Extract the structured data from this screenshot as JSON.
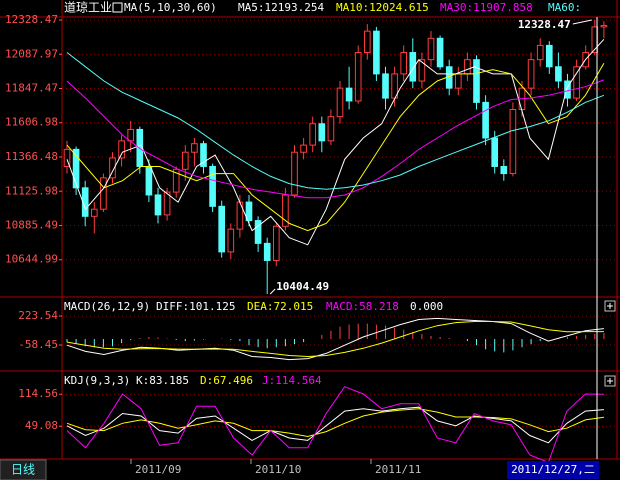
{
  "chart_data": [
    {
      "type": "candlestick",
      "title": "道琼工业",
      "legend": [
        "MA(5,10,30,60)",
        "MA5:12193.254",
        "MA10:12024.615",
        "MA30:11907.858",
        "MA60:"
      ],
      "ylim": [
        10404.49,
        12328.47
      ],
      "yticks": [
        12328.47,
        12087.97,
        11847.47,
        11606.98,
        11366.48,
        11125.98,
        10885.49,
        10644.99
      ],
      "grid": true,
      "up_color": "#ff3c3c",
      "down_color": "#54fcfc",
      "open": [
        11300,
        11420,
        11150,
        10950,
        11000,
        11220,
        11360,
        11480,
        11560,
        11300,
        11100,
        10960,
        11120,
        11280,
        11400,
        11460,
        11300,
        11020,
        10700,
        10860,
        11050,
        10920,
        10760,
        10640,
        10880,
        11100,
        11400,
        11450,
        11600,
        11480,
        11650,
        11850,
        11760,
        12100,
        12250,
        11950,
        11780,
        11950,
        12100,
        11900,
        12050,
        12200,
        12000,
        11850,
        11950,
        12050,
        11750,
        11500,
        11300,
        11250,
        11700,
        11850,
        12050,
        12150,
        12000,
        11900,
        11780,
        12000,
        12100,
        12280
      ],
      "high": [
        11480,
        11440,
        11200,
        11050,
        11250,
        11400,
        11520,
        11620,
        11580,
        11350,
        11150,
        11150,
        11300,
        11450,
        11500,
        11480,
        11320,
        11060,
        10900,
        11100,
        11100,
        10950,
        10800,
        10900,
        11150,
        11450,
        11500,
        11650,
        11650,
        11700,
        11900,
        12000,
        12150,
        12300,
        12280,
        12000,
        12000,
        12150,
        12200,
        12100,
        12250,
        12220,
        12050,
        12000,
        12100,
        12080,
        11800,
        11550,
        11350,
        11750,
        11900,
        12100,
        12200,
        12180,
        12100,
        11950,
        12050,
        12150,
        12328.47,
        12320
      ],
      "low": [
        11250,
        11100,
        10880,
        10830,
        10980,
        11180,
        11300,
        11400,
        11250,
        11050,
        10900,
        10920,
        11080,
        11200,
        11300,
        11250,
        10980,
        10660,
        10650,
        10800,
        10880,
        10700,
        10404.49,
        10600,
        10850,
        11080,
        11350,
        11400,
        11400,
        11450,
        11600,
        11700,
        11740,
        12050,
        11900,
        11700,
        11720,
        11900,
        11850,
        11850,
        12000,
        11980,
        11800,
        11800,
        11900,
        11700,
        11450,
        11250,
        11200,
        11230,
        11650,
        11800,
        12000,
        11950,
        11850,
        11720,
        11760,
        11980,
        12080,
        12200
      ],
      "close": [
        11420,
        11150,
        10950,
        11000,
        11220,
        11360,
        11480,
        11560,
        11300,
        11100,
        10960,
        11120,
        11280,
        11400,
        11460,
        11300,
        11020,
        10700,
        10860,
        11050,
        10920,
        10760,
        10640,
        10880,
        11100,
        11400,
        11450,
        11600,
        11480,
        11650,
        11850,
        11760,
        12100,
        12250,
        11950,
        11780,
        11950,
        12100,
        11900,
        12050,
        12200,
        12000,
        11850,
        11950,
        12050,
        11750,
        11500,
        11300,
        11250,
        11700,
        11850,
        12050,
        12150,
        12000,
        11900,
        11780,
        12000,
        12100,
        12280,
        12290
      ],
      "series": [
        {
          "name": "MA5",
          "color": "#ffffff",
          "values": [
            11350,
            11000,
            11150,
            11400,
            11450,
            11150,
            11050,
            11300,
            11380,
            11150,
            10850,
            10950,
            10800,
            10750,
            11000,
            11350,
            11500,
            11600,
            11850,
            12050,
            11950,
            11950,
            12000,
            11950,
            11950,
            11500,
            11350,
            11850,
            12050,
            12193.254
          ]
        },
        {
          "name": "MA10",
          "color": "#ffff00",
          "values": [
            11450,
            11300,
            11150,
            11200,
            11300,
            11300,
            11250,
            11200,
            11250,
            11250,
            11100,
            11000,
            10900,
            10850,
            10900,
            11050,
            11250,
            11450,
            11650,
            11800,
            11900,
            11950,
            11950,
            11980,
            11950,
            11800,
            11600,
            11650,
            11800,
            12024.615
          ]
        },
        {
          "name": "MA30",
          "color": "#ff00ff",
          "values": [
            11900,
            11780,
            11650,
            11520,
            11420,
            11350,
            11280,
            11230,
            11200,
            11170,
            11140,
            11120,
            11100,
            11080,
            11080,
            11100,
            11150,
            11230,
            11320,
            11420,
            11500,
            11580,
            11650,
            11720,
            11770,
            11780,
            11800,
            11830,
            11860,
            11907.858
          ]
        },
        {
          "name": "MA60",
          "color": "#54fcfc",
          "values": [
            12100,
            12000,
            11900,
            11820,
            11760,
            11700,
            11640,
            11560,
            11470,
            11380,
            11300,
            11230,
            11180,
            11150,
            11140,
            11150,
            11170,
            11200,
            11240,
            11300,
            11350,
            11400,
            11450,
            11500,
            11550,
            11580,
            11620,
            11680,
            11750,
            11800
          ]
        }
      ],
      "annotations": [
        "12328.47",
        "10404.49"
      ]
    },
    {
      "type": "macd",
      "legend": [
        "MACD(26,12,9)",
        "DIFF:101.125",
        "DEA:72.015",
        "MACD:58.218",
        "0.000"
      ],
      "ylim": [
        -301,
        389
      ],
      "yticks": [
        223.54,
        -58.45
      ],
      "grid": true,
      "series": [
        {
          "name": "DIFF",
          "color": "#ffffff",
          "values": [
            -60,
            -120,
            -150,
            -110,
            -80,
            -90,
            -110,
            -100,
            -90,
            -110,
            -170,
            -180,
            -200,
            -190,
            -140,
            -60,
            20,
            80,
            140,
            190,
            200,
            190,
            180,
            170,
            150,
            60,
            -20,
            30,
            80,
            101.125
          ]
        },
        {
          "name": "DEA",
          "color": "#ffff00",
          "values": [
            -30,
            -60,
            -90,
            -100,
            -95,
            -92,
            -98,
            -100,
            -97,
            -100,
            -120,
            -140,
            -160,
            -170,
            -160,
            -130,
            -90,
            -40,
            20,
            80,
            130,
            160,
            170,
            170,
            165,
            130,
            90,
            70,
            72,
            72.015
          ]
        }
      ],
      "bars": {
        "name": "MACD",
        "values": [
          -30,
          -50,
          -70,
          -80,
          -80,
          -70,
          -40,
          -10,
          10,
          20,
          15,
          5,
          -10,
          -20,
          -15,
          -5,
          0,
          5,
          -10,
          -20,
          -60,
          -80,
          -90,
          -80,
          -70,
          -50,
          -30,
          0,
          40,
          80,
          120,
          140,
          150,
          150,
          140,
          130,
          110,
          90,
          70,
          50,
          30,
          20,
          10,
          0,
          -20,
          -60,
          -100,
          -120,
          -130,
          -110,
          -80,
          -50,
          -20,
          0,
          10,
          20,
          30,
          40,
          50,
          58.218
        ]
      }
    },
    {
      "type": "kdj",
      "legend": [
        "KDJ(9,3,3)",
        "K:83.185",
        "D:67.496",
        "J:114.564"
      ],
      "ylim": [
        -14,
        156
      ],
      "yticks": [
        114.56,
        49.08
      ],
      "grid": true,
      "series": [
        {
          "name": "K",
          "color": "#ffffff",
          "values": [
            50,
            30,
            45,
            75,
            70,
            40,
            35,
            65,
            70,
            45,
            20,
            40,
            25,
            20,
            50,
            80,
            85,
            80,
            85,
            88,
            60,
            50,
            70,
            65,
            60,
            30,
            15,
            55,
            80,
            83.185
          ]
        },
        {
          "name": "D",
          "color": "#ffff00",
          "values": [
            55,
            42,
            40,
            55,
            62,
            55,
            45,
            52,
            60,
            55,
            40,
            40,
            35,
            28,
            38,
            55,
            70,
            78,
            82,
            85,
            78,
            68,
            68,
            67,
            64,
            52,
            38,
            45,
            62,
            67.496
          ]
        },
        {
          "name": "J",
          "color": "#ff00ff",
          "values": [
            40,
            5,
            55,
            115,
            85,
            10,
            15,
            90,
            90,
            25,
            -10,
            40,
            5,
            5,
            75,
            130,
            115,
            85,
            95,
            95,
            25,
            15,
            75,
            60,
            52,
            -10,
            -25,
            80,
            115,
            114.564
          ]
        }
      ]
    }
  ],
  "footer": {
    "period": "日线",
    "dates": [
      "2011/09",
      "2011/10",
      "2011/11"
    ],
    "cursor_date": "2011/12/27,二"
  }
}
